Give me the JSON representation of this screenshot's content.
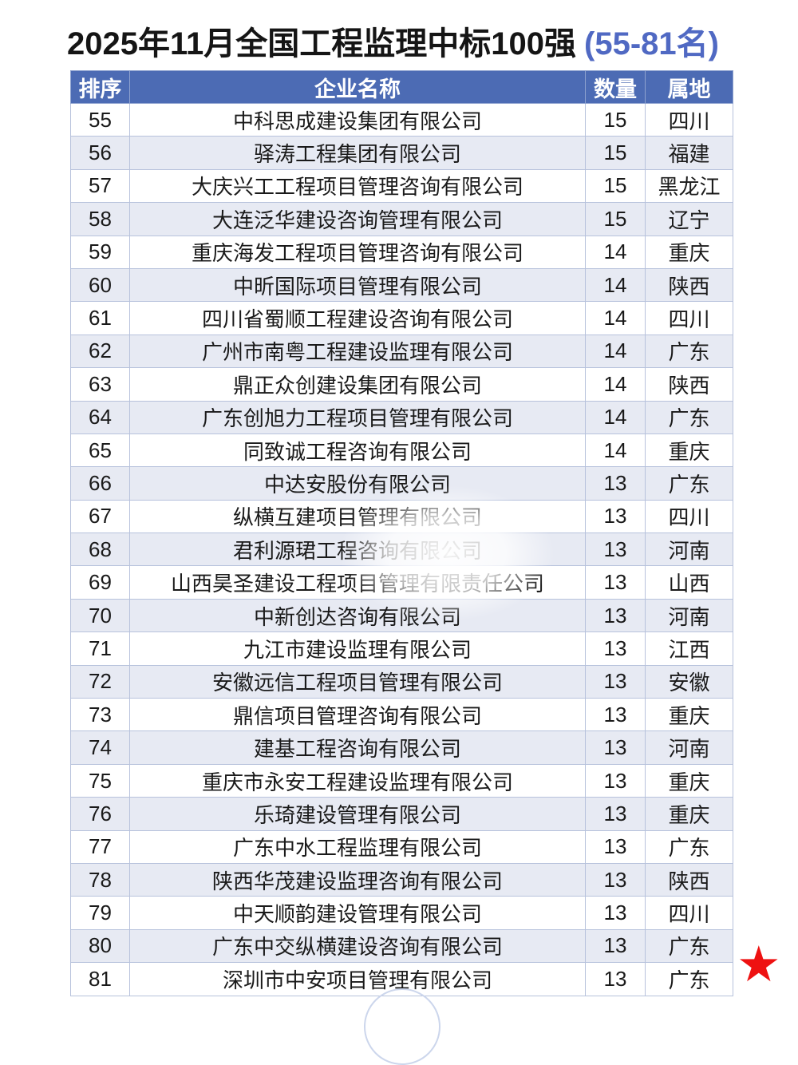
{
  "title": {
    "main": "2025年11月全国工程监理中标100强",
    "range": "(55-81名)"
  },
  "table": {
    "headers": {
      "rank": "排序",
      "company": "企业名称",
      "quantity": "数量",
      "region": "属地"
    },
    "rows": [
      {
        "rank": "55",
        "company": "中科思成建设集团有限公司",
        "quantity": "15",
        "region": "四川"
      },
      {
        "rank": "56",
        "company": "驿涛工程集团有限公司",
        "quantity": "15",
        "region": "福建"
      },
      {
        "rank": "57",
        "company": "大庆兴工工程项目管理咨询有限公司",
        "quantity": "15",
        "region": "黑龙江"
      },
      {
        "rank": "58",
        "company": "大连泛华建设咨询管理有限公司",
        "quantity": "15",
        "region": "辽宁"
      },
      {
        "rank": "59",
        "company": "重庆海发工程项目管理咨询有限公司",
        "quantity": "14",
        "region": "重庆"
      },
      {
        "rank": "60",
        "company": "中昕国际项目管理有限公司",
        "quantity": "14",
        "region": "陕西"
      },
      {
        "rank": "61",
        "company": "四川省蜀顺工程建设咨询有限公司",
        "quantity": "14",
        "region": "四川"
      },
      {
        "rank": "62",
        "company": "广州市南粤工程建设监理有限公司",
        "quantity": "14",
        "region": "广东"
      },
      {
        "rank": "63",
        "company": "鼎正众创建设集团有限公司",
        "quantity": "14",
        "region": "陕西"
      },
      {
        "rank": "64",
        "company": "广东创旭力工程项目管理有限公司",
        "quantity": "14",
        "region": "广东"
      },
      {
        "rank": "65",
        "company": "同致诚工程咨询有限公司",
        "quantity": "14",
        "region": "重庆"
      },
      {
        "rank": "66",
        "company": "中达安股份有限公司",
        "quantity": "13",
        "region": "广东"
      },
      {
        "rank": "67",
        "company": "纵横互建项目管理有限公司",
        "quantity": "13",
        "region": "四川"
      },
      {
        "rank": "68",
        "company": "君利源珺工程咨询有限公司",
        "quantity": "13",
        "region": "河南"
      },
      {
        "rank": "69",
        "company": "山西昊圣建设工程项目管理有限责任公司",
        "quantity": "13",
        "region": "山西"
      },
      {
        "rank": "70",
        "company": "中新创达咨询有限公司",
        "quantity": "13",
        "region": "河南"
      },
      {
        "rank": "71",
        "company": "九江市建设监理有限公司",
        "quantity": "13",
        "region": "江西"
      },
      {
        "rank": "72",
        "company": "安徽远信工程项目管理有限公司",
        "quantity": "13",
        "region": "安徽"
      },
      {
        "rank": "73",
        "company": "鼎信项目管理咨询有限公司",
        "quantity": "13",
        "region": "重庆"
      },
      {
        "rank": "74",
        "company": "建基工程咨询有限公司",
        "quantity": "13",
        "region": "河南"
      },
      {
        "rank": "75",
        "company": "重庆市永安工程建设监理有限公司",
        "quantity": "13",
        "region": "重庆"
      },
      {
        "rank": "76",
        "company": "乐琦建设管理有限公司",
        "quantity": "13",
        "region": "重庆"
      },
      {
        "rank": "77",
        "company": "广东中水工程监理有限公司",
        "quantity": "13",
        "region": "广东"
      },
      {
        "rank": "78",
        "company": "陕西华茂建设监理咨询有限公司",
        "quantity": "13",
        "region": "陕西"
      },
      {
        "rank": "79",
        "company": "中天顺韵建设管理有限公司",
        "quantity": "13",
        "region": "四川"
      },
      {
        "rank": "80",
        "company": "广东中交纵横建设咨询有限公司",
        "quantity": "13",
        "region": "广东"
      },
      {
        "rank": "81",
        "company": "深圳市中安项目管理有限公司",
        "quantity": "13",
        "region": "广东"
      }
    ]
  },
  "decorations": {
    "star_icon": "★",
    "colors": {
      "header_blue": "#4c6bb4",
      "title_accent_blue": "#5069c3",
      "stripe_lavender": "#e7eaf3",
      "gridline": "#b7c2dc",
      "star_red": "#ee1111"
    }
  }
}
